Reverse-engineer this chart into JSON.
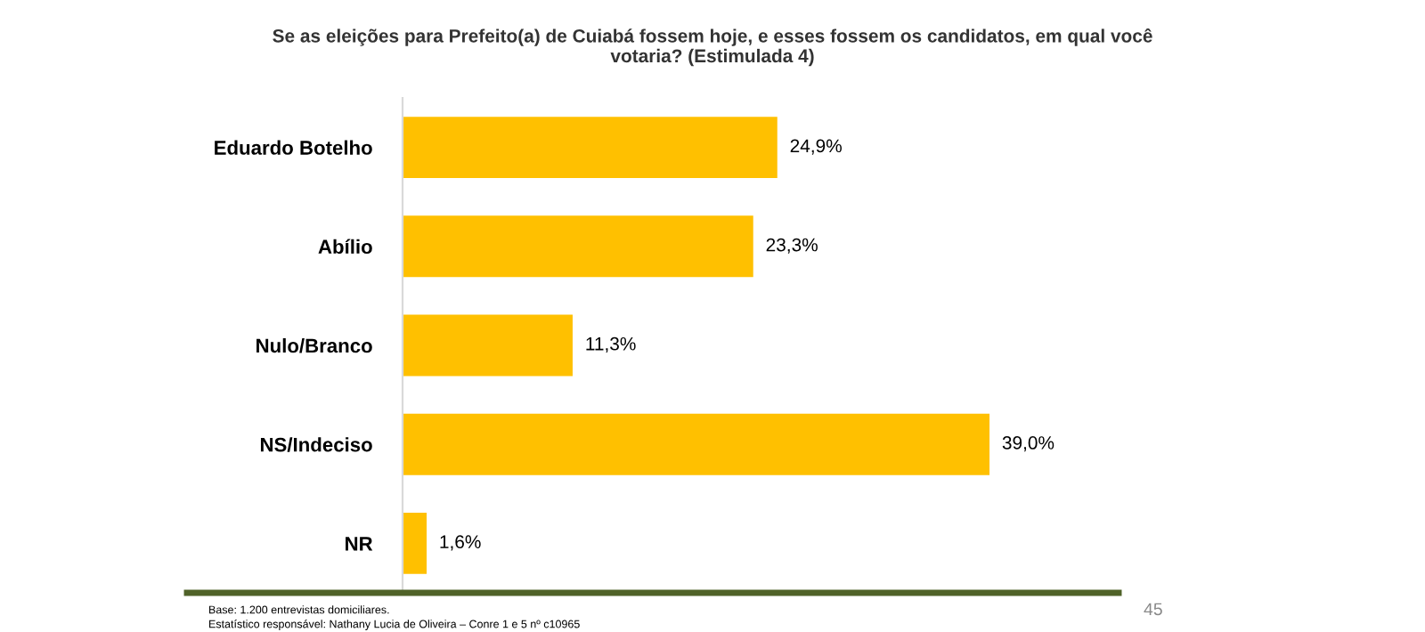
{
  "chart_data": {
    "type": "bar",
    "orientation": "horizontal",
    "title": "Se as eleições para Prefeito(a) de Cuiabá fossem hoje, e esses fossem os candidatos, em qual você\nvotaria? (Estimulada 4)",
    "categories": [
      "Eduardo Botelho",
      "Abílio",
      "Nulo/Branco",
      "NS/Indeciso",
      "NR"
    ],
    "values": [
      24.9,
      23.3,
      11.3,
      39.0,
      1.6
    ],
    "value_labels": [
      "24,9%",
      "23,3%",
      "11,3%",
      "39,0%",
      "1,6%"
    ],
    "color": "#ffc000",
    "annotations": [
      "Base: 1.200 entrevistas domiciliares.",
      "Estatístico responsável: Nathany Lucia de Oliveira – Conre 1 e 5 nº c10965",
      "45"
    ]
  }
}
